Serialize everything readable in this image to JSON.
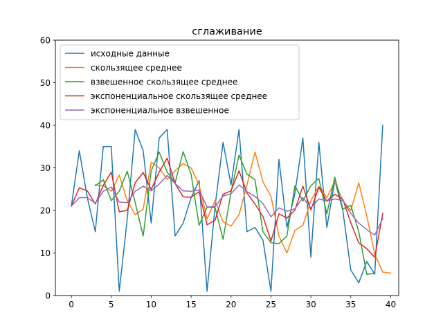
{
  "chart_data": {
    "type": "line",
    "title": "сглаживание",
    "xlabel": "",
    "ylabel": "",
    "xlim": [
      -2,
      41
    ],
    "ylim": [
      0,
      60
    ],
    "xticks": [
      0,
      5,
      10,
      15,
      20,
      25,
      30,
      35,
      40
    ],
    "yticks": [
      0,
      10,
      20,
      30,
      40,
      50,
      60
    ],
    "grid": false,
    "legend_position": "top-left",
    "series": [
      {
        "name": "исходные данные",
        "color": "#1f77b4",
        "x_start": 0,
        "values": [
          21,
          34,
          23,
          15,
          35,
          35,
          1,
          18,
          39,
          34,
          17,
          37,
          39,
          14,
          17,
          23,
          27,
          1,
          21,
          36,
          26,
          39,
          15,
          16,
          13,
          1,
          32,
          16,
          24,
          37,
          9,
          36,
          16,
          27,
          20,
          6,
          3,
          8,
          5,
          40
        ]
      },
      {
        "name": "скользящее среднее",
        "color": "#ff7f0e",
        "x_start": 3,
        "values": [
          26,
          25.8,
          24.5,
          28.3,
          22.3,
          19,
          20.3,
          31.3,
          30,
          27.3,
          29.3,
          31,
          30,
          26,
          18,
          22.3,
          17.3,
          16.3,
          19,
          26,
          33.7,
          26.7,
          23.3,
          14,
          10,
          15.3,
          16.5,
          22.3,
          25.7,
          23,
          26.8,
          22.3,
          20,
          26.5,
          18.7,
          9.7,
          5.5,
          5.3
        ]
      },
      {
        "name": "взвешенное скользящее среднее",
        "color": "#2ca02c",
        "x_start": 3,
        "values": [
          25.8,
          27.2,
          22.3,
          24.5,
          29.2,
          21.8,
          14,
          29.3,
          33.7,
          29,
          26.5,
          33.8,
          28.5,
          16.5,
          20.8,
          20.7,
          13.2,
          24.3,
          33,
          28.5,
          27.2,
          15,
          12.4,
          12.2,
          14,
          25.8,
          22.2,
          25.8,
          27.5,
          19.2,
          27.8,
          20.3,
          21.2,
          15,
          5,
          5.2
        ]
      },
      {
        "name": "экспоненциальное скользящее среднее",
        "color": "#d62728",
        "x_start": 0,
        "values": [
          21,
          25.3,
          24.6,
          21.5,
          25.9,
          29,
          19.7,
          20,
          26.5,
          28.9,
          24.9,
          29,
          32.3,
          26.3,
          23.2,
          23.1,
          24.4,
          16.6,
          17.7,
          23.8,
          24.6,
          29.3,
          24.1,
          21.5,
          18.6,
          12.8,
          19.2,
          18.2,
          20.1,
          25.7,
          20.1,
          25.4,
          22.2,
          23.8,
          22.6,
          17.1,
          12.4,
          11,
          9,
          19.3
        ]
      },
      {
        "name": "экспоненциальное взвешенное",
        "color": "#9467bd",
        "x_start": 0,
        "values": [
          21,
          23,
          23,
          21.7,
          24.5,
          25.5,
          22,
          21.8,
          24.5,
          25.7,
          24.6,
          26.2,
          28.2,
          26.3,
          24.6,
          24.5,
          24.8,
          20.8,
          20.9,
          23.4,
          23.9,
          26,
          24.4,
          23.3,
          21.6,
          18.5,
          20.6,
          19.8,
          20.4,
          23,
          20.6,
          22.7,
          22.2,
          22.7,
          22.3,
          19.3,
          17,
          15.5,
          14.2,
          18.1
        ]
      }
    ]
  }
}
